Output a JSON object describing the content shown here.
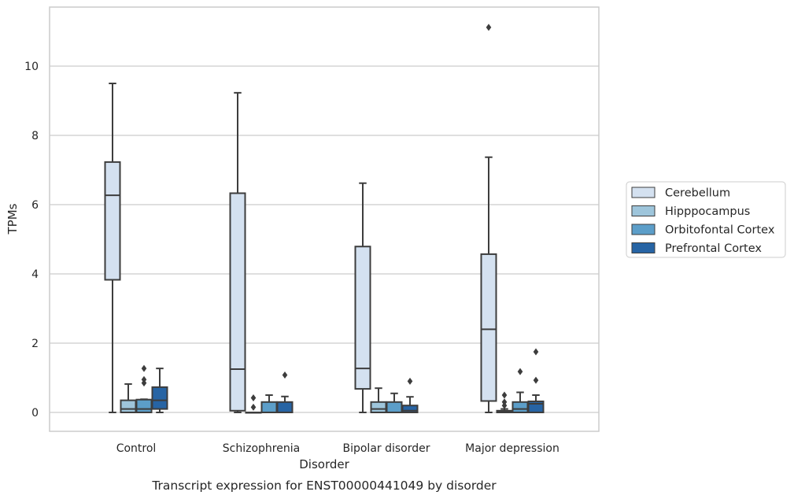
{
  "chart_data": {
    "type": "box",
    "xlabel": "Disorder",
    "ylabel": "TPMs",
    "caption": "Transcript expression for ENST00000441049 by disorder",
    "categories": [
      "Control",
      "Schizophrenia",
      "Bipolar disorder",
      "Major depression"
    ],
    "ylim": [
      -0.55,
      11.7
    ],
    "yticks": [
      0,
      2,
      4,
      6,
      8,
      10
    ],
    "grid": "horizontal",
    "legend_position": "right",
    "series": [
      {
        "name": "Cerebellum",
        "color": "#d4e1f0",
        "boxes": [
          {
            "whislo": 0.0,
            "q1": 3.83,
            "med": 6.27,
            "q3": 7.23,
            "whishi": 9.5,
            "fliers": []
          },
          {
            "whislo": 0.0,
            "q1": 0.05,
            "med": 1.25,
            "q3": 6.33,
            "whishi": 9.23,
            "fliers": []
          },
          {
            "whislo": 0.0,
            "q1": 0.68,
            "med": 1.27,
            "q3": 4.79,
            "whishi": 6.62,
            "fliers": []
          },
          {
            "whislo": 0.0,
            "q1": 0.33,
            "med": 2.4,
            "q3": 4.57,
            "whishi": 7.37,
            "fliers": [
              11.12
            ]
          }
        ]
      },
      {
        "name": "Hipppocampus",
        "color": "#9ec5db",
        "boxes": [
          {
            "whislo": 0.0,
            "q1": 0.0,
            "med": 0.1,
            "q3": 0.35,
            "whishi": 0.82,
            "fliers": []
          },
          {
            "whislo": 0.0,
            "q1": 0.0,
            "med": 0.0,
            "q3": 0.0,
            "whishi": 0.0,
            "fliers": [
              0.15,
              0.42
            ]
          },
          {
            "whislo": 0.0,
            "q1": 0.0,
            "med": 0.1,
            "q3": 0.3,
            "whishi": 0.7,
            "fliers": []
          },
          {
            "whislo": 0.0,
            "q1": 0.0,
            "med": 0.02,
            "q3": 0.05,
            "whishi": 0.1,
            "fliers": [
              0.2,
              0.3,
              0.5
            ]
          }
        ]
      },
      {
        "name": "Orbitofontal Cortex",
        "color": "#5c9ec9",
        "boxes": [
          {
            "whislo": 0.0,
            "q1": 0.0,
            "med": 0.1,
            "q3": 0.37,
            "whishi": 0.38,
            "fliers": [
              0.85,
              0.95,
              1.27
            ]
          },
          {
            "whislo": 0.0,
            "q1": 0.0,
            "med": 0.0,
            "q3": 0.3,
            "whishi": 0.5,
            "fliers": []
          },
          {
            "whislo": 0.0,
            "q1": 0.0,
            "med": 0.0,
            "q3": 0.3,
            "whishi": 0.55,
            "fliers": []
          },
          {
            "whislo": 0.0,
            "q1": 0.0,
            "med": 0.1,
            "q3": 0.3,
            "whishi": 0.58,
            "fliers": [
              1.18
            ]
          }
        ]
      },
      {
        "name": "Prefrontal Cortex",
        "color": "#2764a4",
        "boxes": [
          {
            "whislo": 0.0,
            "q1": 0.1,
            "med": 0.35,
            "q3": 0.73,
            "whishi": 1.27,
            "fliers": []
          },
          {
            "whislo": 0.0,
            "q1": 0.0,
            "med": 0.0,
            "q3": 0.3,
            "whishi": 0.46,
            "fliers": [
              1.08
            ]
          },
          {
            "whislo": 0.0,
            "q1": 0.0,
            "med": 0.05,
            "q3": 0.2,
            "whishi": 0.45,
            "fliers": [
              0.9
            ]
          },
          {
            "whislo": 0.0,
            "q1": 0.0,
            "med": 0.25,
            "q3": 0.32,
            "whishi": 0.5,
            "fliers": [
              0.93,
              1.75
            ]
          }
        ]
      }
    ]
  }
}
